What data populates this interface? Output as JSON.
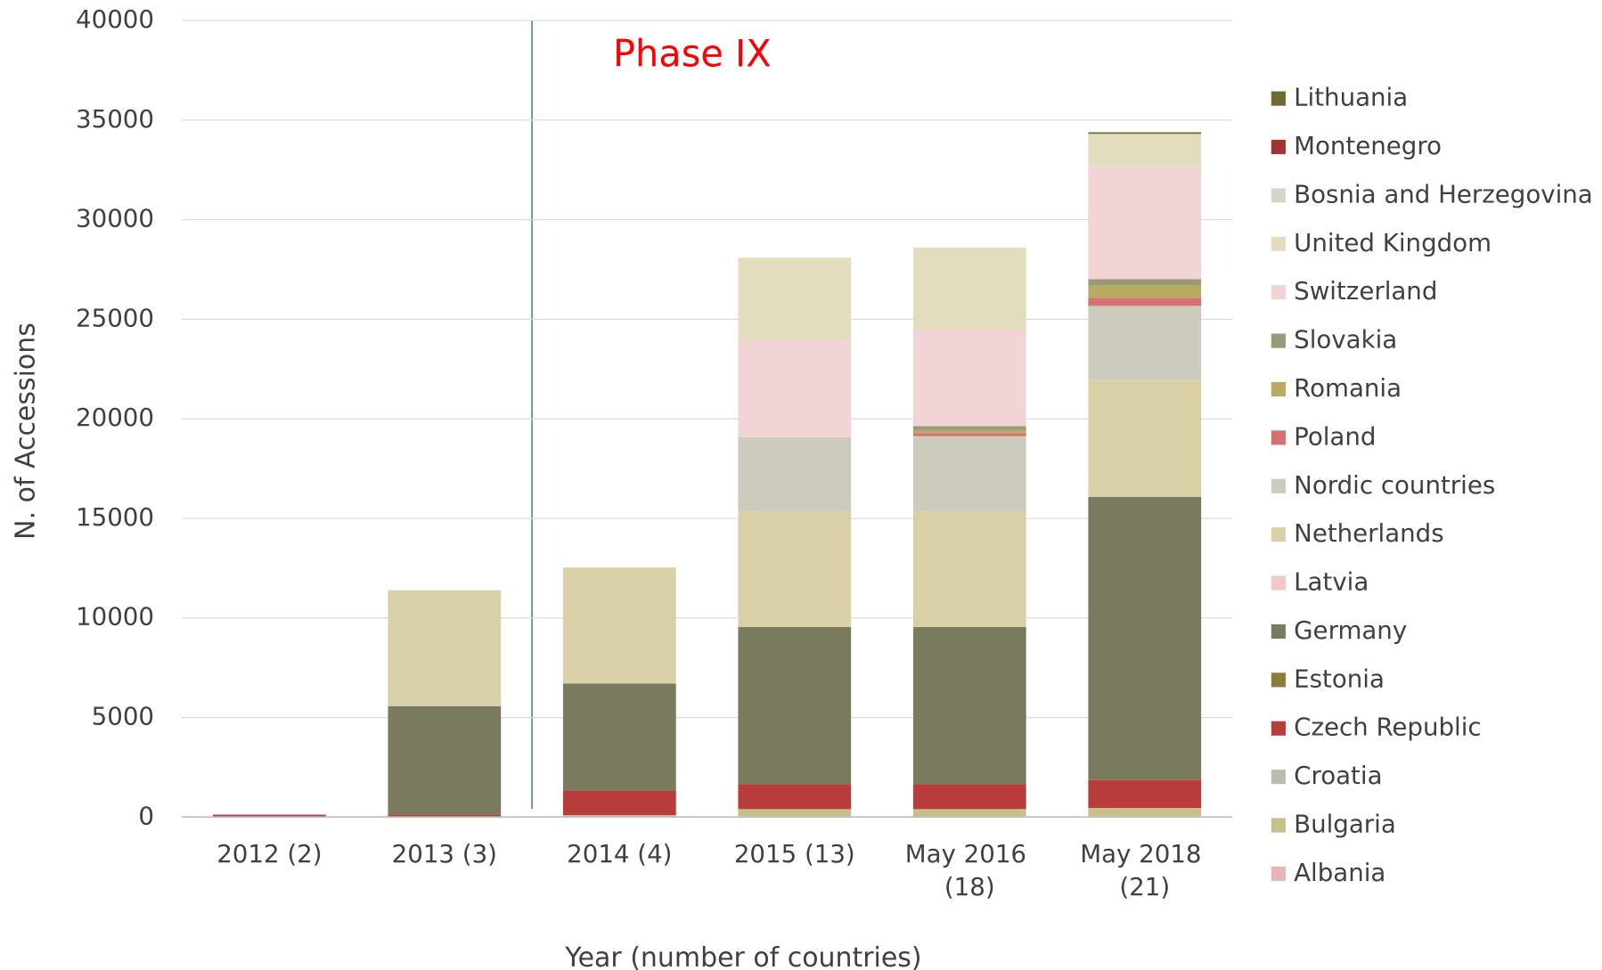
{
  "chart_data": {
    "type": "stacked_bar",
    "annotation": "Phase IX",
    "x_label": "Year (number of countries)",
    "y_label": "N. of Accessions",
    "categories": [
      "2012 (2)",
      "2013 (3)",
      "2014 (4)",
      "2015 (13)",
      "May 2016 (18)",
      "May 2018 (21)"
    ],
    "ylim": [
      0,
      40000
    ],
    "yticks": [
      0,
      5000,
      10000,
      15000,
      20000,
      25000,
      30000,
      35000,
      40000
    ],
    "grid": true,
    "legend": "right",
    "series": [
      {
        "name": "Albania",
        "color": "#e8b4b4",
        "values": [
          0,
          0,
          0,
          0,
          0,
          50
        ]
      },
      {
        "name": "Bulgaria",
        "color": "#c8c08c",
        "values": [
          0,
          0,
          100,
          400,
          400,
          410
        ]
      },
      {
        "name": "Croatia",
        "color": "#bdbcaa",
        "values": [
          0,
          0,
          0,
          0,
          0,
          0
        ]
      },
      {
        "name": "Czech Republic",
        "color": "#b83c3c",
        "values": [
          120,
          120,
          1240,
          1250,
          1250,
          1400
        ]
      },
      {
        "name": "Estonia",
        "color": "#8b7d3a",
        "values": [
          0,
          0,
          0,
          0,
          0,
          0
        ]
      },
      {
        "name": "Germany",
        "color": "#7a7a5e",
        "values": [
          0,
          5450,
          5360,
          7890,
          7890,
          14220
        ]
      },
      {
        "name": "Latvia",
        "color": "#f0c8c8",
        "values": [
          0,
          0,
          0,
          0,
          0,
          0
        ]
      },
      {
        "name": "Netherlands",
        "color": "#d9d0a8",
        "values": [
          0,
          5820,
          5830,
          5820,
          5820,
          5880
        ]
      },
      {
        "name": "Nordic countries",
        "color": "#cdcbbd",
        "values": [
          0,
          0,
          0,
          3710,
          3770,
          3710
        ]
      },
      {
        "name": "Poland",
        "color": "#d77070",
        "values": [
          0,
          0,
          0,
          0,
          150,
          410
        ]
      },
      {
        "name": "Romania",
        "color": "#b8aa60",
        "values": [
          0,
          0,
          0,
          0,
          150,
          620
        ]
      },
      {
        "name": "Slovakia",
        "color": "#9a9a78",
        "values": [
          0,
          0,
          0,
          0,
          200,
          310
        ]
      },
      {
        "name": "Switzerland",
        "color": "#f2d4d6",
        "values": [
          0,
          0,
          0,
          4850,
          4850,
          5680
        ]
      },
      {
        "name": "United Kingdom",
        "color": "#e3ddbf",
        "values": [
          0,
          0,
          0,
          4170,
          4120,
          1590
        ]
      },
      {
        "name": "Bosnia and Herzegovina",
        "color": "#d6d6c8",
        "values": [
          0,
          0,
          0,
          0,
          0,
          30
        ]
      },
      {
        "name": "Montenegro",
        "color": "#a33232",
        "values": [
          0,
          0,
          0,
          0,
          0,
          0
        ]
      },
      {
        "name": "Lithuania",
        "color": "#6e6a30",
        "values": [
          0,
          0,
          0,
          0,
          0,
          80
        ]
      }
    ]
  }
}
